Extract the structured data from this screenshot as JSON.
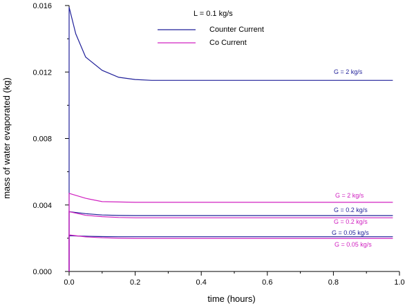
{
  "chart_data": {
    "type": "line",
    "title": "",
    "xlabel": "time (hours)",
    "ylabel": "mass of water evaporated (kg)",
    "xlim": [
      0,
      1.0
    ],
    "ylim": [
      0,
      0.016
    ],
    "xticks": [
      "0.0",
      "0.2",
      "0.4",
      "0.6",
      "0.8",
      "1.0"
    ],
    "yticks": [
      "0.000",
      "0.004",
      "0.008",
      "0.012",
      "0.016"
    ],
    "grid": false,
    "legend": {
      "header": "L = 0.1 kg/s",
      "placement": "top-center",
      "entries": [
        {
          "name": "Counter Current",
          "color": "#1f1f99"
        },
        {
          "name": "Co Current",
          "color": "#d020c0"
        }
      ]
    },
    "series": [
      {
        "name": "Counter Current",
        "color": "#1f1f99",
        "label": "G = 2 kg/s",
        "x": [
          0,
          0.02,
          0.05,
          0.1,
          0.15,
          0.2,
          0.25,
          0.4,
          0.6,
          0.8,
          0.98
        ],
        "y": [
          0.0159,
          0.0143,
          0.0129,
          0.0121,
          0.01168,
          0.01155,
          0.0115,
          0.0115,
          0.0115,
          0.0115,
          0.0115
        ]
      },
      {
        "name": "Co Current",
        "color": "#d020c0",
        "label": "G = 2 kg/s",
        "x": [
          0,
          0.05,
          0.1,
          0.15,
          0.2,
          0.4,
          0.6,
          0.8,
          0.98
        ],
        "y": [
          0.0047,
          0.0044,
          0.0042,
          0.00418,
          0.00416,
          0.00416,
          0.00416,
          0.00416,
          0.00416
        ]
      },
      {
        "name": "Counter Current",
        "color": "#1f1f99",
        "label": "G = 0.2 kg/s",
        "x": [
          0,
          0.05,
          0.1,
          0.15,
          0.2,
          0.4,
          0.6,
          0.8,
          0.98
        ],
        "y": [
          0.0036,
          0.00348,
          0.0034,
          0.00337,
          0.00336,
          0.00336,
          0.00336,
          0.00336,
          0.00336
        ]
      },
      {
        "name": "Co Current",
        "color": "#d020c0",
        "label": "G = 0.2 kg/s",
        "x": [
          0,
          0.05,
          0.1,
          0.15,
          0.2,
          0.4,
          0.6,
          0.8,
          0.98
        ],
        "y": [
          0.0036,
          0.00338,
          0.0033,
          0.00325,
          0.00323,
          0.00323,
          0.00323,
          0.00323,
          0.00323
        ]
      },
      {
        "name": "Counter Current",
        "color": "#1f1f99",
        "label": "G = 0.05 kg/s",
        "x": [
          0,
          0.05,
          0.1,
          0.15,
          0.2,
          0.4,
          0.6,
          0.8,
          0.98
        ],
        "y": [
          0.00215,
          0.00212,
          0.0021,
          0.00209,
          0.00209,
          0.00209,
          0.00209,
          0.00209,
          0.00209
        ]
      },
      {
        "name": "Co Current",
        "color": "#d020c0",
        "label": "G = 0.05 kg/s",
        "x": [
          0,
          0.05,
          0.1,
          0.15,
          0.2,
          0.4,
          0.6,
          0.8,
          0.98
        ],
        "y": [
          0.0022,
          0.00208,
          0.00203,
          0.002,
          0.00199,
          0.00199,
          0.00199,
          0.00199,
          0.00199
        ]
      }
    ]
  }
}
